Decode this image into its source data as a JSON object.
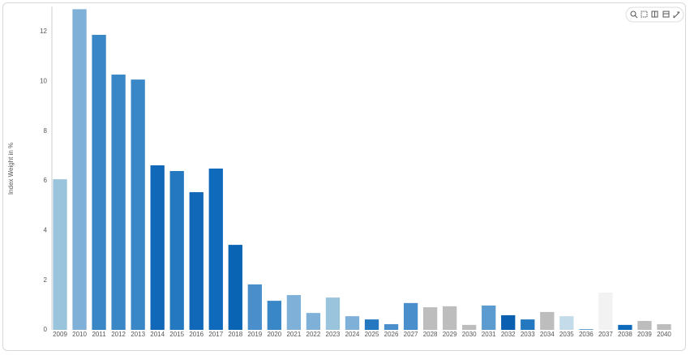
{
  "chart_data": {
    "type": "bar",
    "y_label": "Index Weight in %",
    "categories": [
      "2009",
      "2010",
      "2011",
      "2012",
      "2013",
      "2014",
      "2015",
      "2016",
      "2017",
      "2018",
      "2019",
      "2020",
      "2021",
      "2022",
      "2023",
      "2024",
      "2025",
      "2026",
      "2027",
      "2028",
      "2029",
      "2030",
      "2031",
      "2032",
      "2033",
      "2034",
      "2035",
      "2036",
      "2037",
      "2038",
      "2039",
      "2040"
    ],
    "values": [
      6.06,
      12.9,
      11.87,
      10.27,
      10.07,
      6.62,
      6.39,
      5.54,
      6.49,
      3.42,
      1.83,
      1.17,
      1.4,
      0.68,
      1.3,
      0.55,
      0.42,
      0.23,
      1.08,
      0.91,
      0.95,
      0.2,
      0.98,
      0.59,
      0.42,
      0.72,
      0.55,
      0.03,
      1.5,
      0.2,
      0.36,
      0.23
    ],
    "colors": [
      "#9ac3dc",
      "#7fb0d8",
      "#3a87c8",
      "#3a87c8",
      "#3a87c8",
      "#1268b8",
      "#2478c0",
      "#1268b8",
      "#0f6abc",
      "#0a64b4",
      "#4a8fcc",
      "#3a87c8",
      "#7fb0d8",
      "#7fb0d8",
      "#9ac3dc",
      "#7fb0d8",
      "#2478c0",
      "#4a8fcc",
      "#4a8fcc",
      "#bdbdbd",
      "#bdbdbd",
      "#bdbdbd",
      "#5c9bd0",
      "#0a5fb0",
      "#2478c0",
      "#bdbdbd",
      "#c4dcea",
      "#5c9bd0",
      "#f2f2f2",
      "#0f6abc",
      "#bdbdbd",
      "#bdbdbd"
    ],
    "ylim": [
      0,
      13
    ],
    "yticks": [
      0,
      2,
      4,
      6,
      8,
      10,
      12
    ],
    "grid": false
  }
}
